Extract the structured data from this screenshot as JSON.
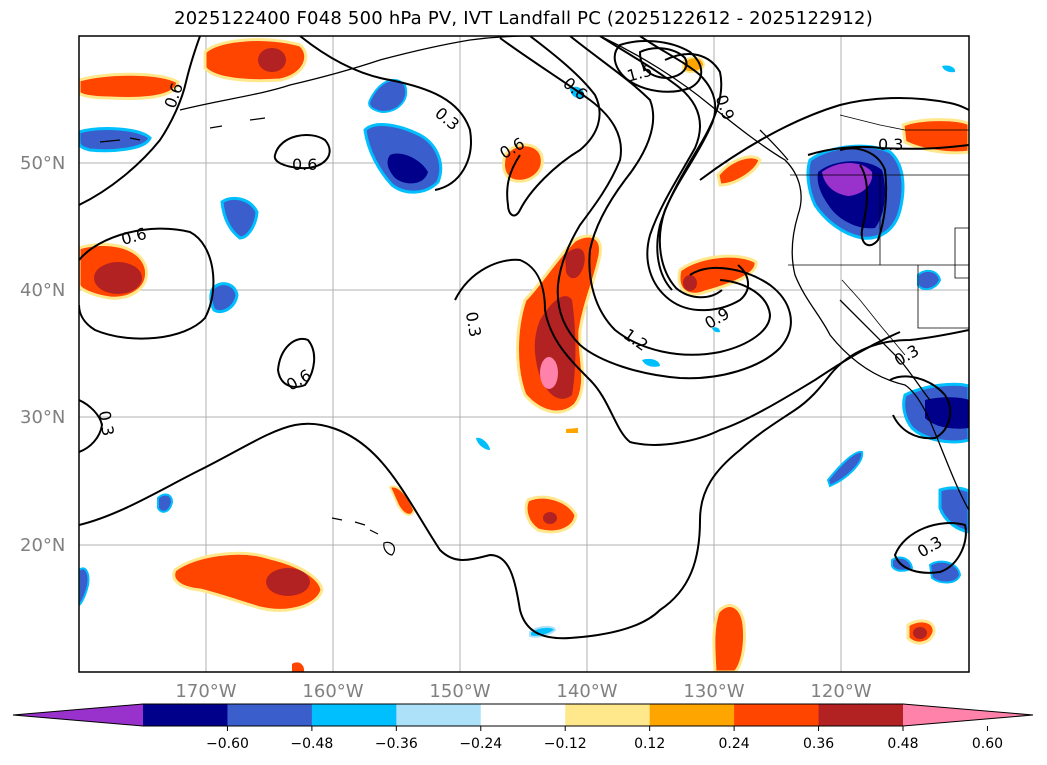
{
  "title": "2025122400 F048 500 hPa PV, IVT Landfall PC (2025122612 - 2025122912)",
  "lat_labels": [
    "50°N",
    "40°N",
    "30°N",
    "20°N"
  ],
  "lon_labels": [
    "170°W",
    "160°W",
    "150°W",
    "140°W",
    "130°W",
    "120°W"
  ],
  "contour_labels": [
    "0.6",
    "0.3",
    "0.6",
    "0.6",
    "0.6",
    "0.6",
    "0.3",
    "0.6",
    "1.2",
    "0.9",
    "0.3",
    "0.3",
    "0.3",
    "0.9",
    "1.5"
  ],
  "colorbar": {
    "colors": [
      "#9932CC",
      "#00008B",
      "#3A5FCD",
      "#00BFFF",
      "#ADE1FA",
      "#FFFFFF",
      "#FFE88C",
      "#FFA500",
      "#FF4500",
      "#B22222",
      "#FF82AB"
    ],
    "tick_labels": [
      "−0.60",
      "−0.48",
      "−0.36",
      "−0.24",
      "−0.12",
      "0.12",
      "0.24",
      "0.36",
      "0.48",
      "0.60"
    ]
  }
}
